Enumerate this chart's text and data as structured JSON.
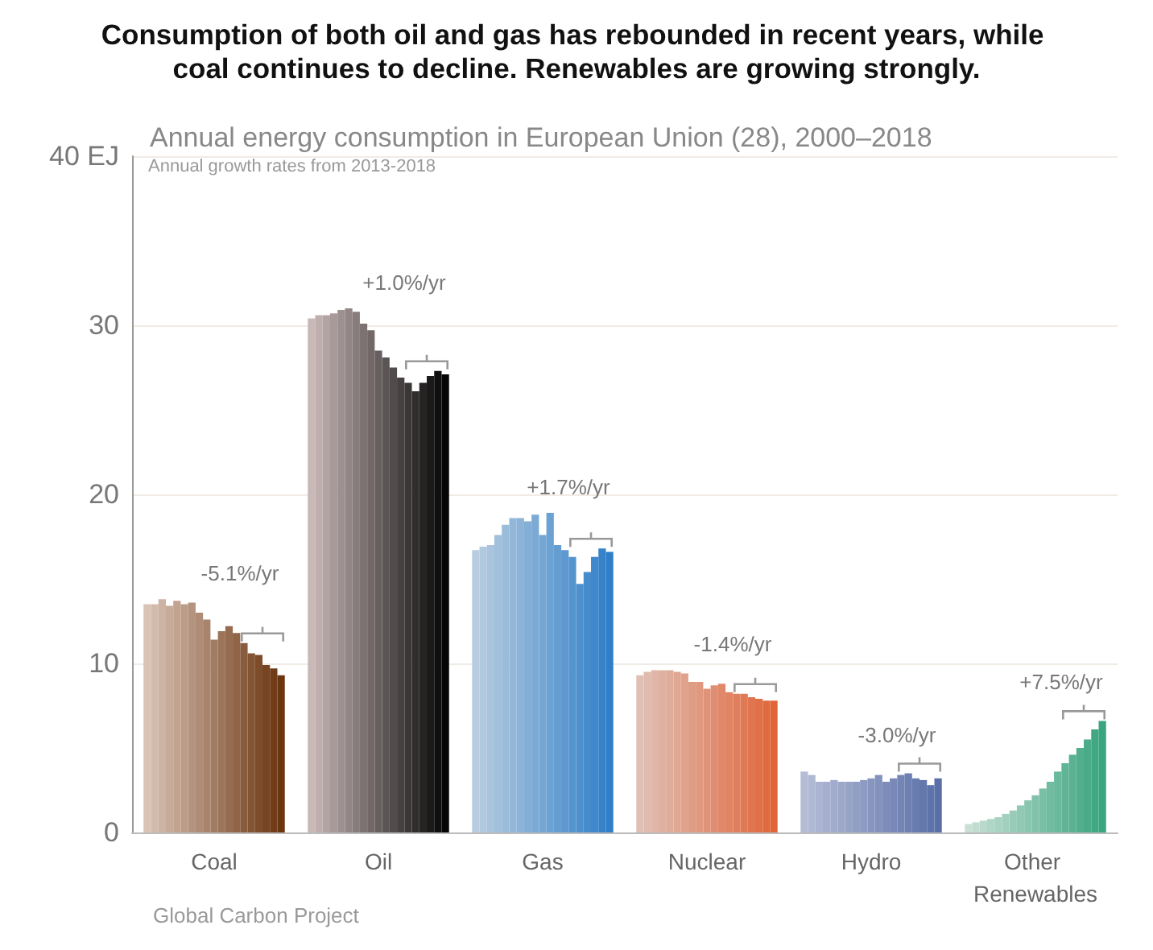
{
  "chart_data": {
    "type": "bar",
    "title": "Consumption of both oil and gas has rebounded in recent years, while coal continues to decline. Renewables are growing strongly.",
    "subtitle": "Annual energy consumption in European Union (28), 2000–2018",
    "categories": [
      "Coal",
      "Oil",
      "Gas",
      "Nuclear",
      "Hydro",
      "Other Renewables"
    ],
    "series": [
      {
        "values": [
          13.5,
          30.4,
          16.7,
          9.3,
          3.6,
          0.5
        ],
        "colors": [
          "#d9c3b5",
          "#c9b8b8",
          "#b9cde0",
          "#e0c0b5",
          "#b5bdd6",
          "#c8e0d5"
        ]
      },
      {
        "values": [
          13.5,
          30.6,
          16.9,
          9.5,
          3.4,
          0.6
        ],
        "colors": [
          "#d3bbac",
          "#beaeae",
          "#b1c9df",
          "#e0bbae",
          "#b0b9d3",
          "#c0ddd0"
        ]
      },
      {
        "values": [
          13.8,
          30.6,
          17.0,
          9.6,
          3.0,
          0.7
        ],
        "colors": [
          "#cdb3a3",
          "#b3a4a4",
          "#aac4dd",
          "#e0b6a8",
          "#abb4d1",
          "#b8d9cb"
        ]
      },
      {
        "values": [
          13.4,
          30.7,
          17.6,
          9.6,
          3.0,
          0.8
        ],
        "colors": [
          "#c7ab99",
          "#a89a9a",
          "#a2c0dc",
          "#e0b1a1",
          "#a6b0ce",
          "#b0d6c7"
        ]
      },
      {
        "values": [
          13.7,
          30.9,
          18.2,
          9.6,
          3.1,
          0.9
        ],
        "colors": [
          "#c1a390",
          "#9d9090",
          "#9abcdb",
          "#e0ac9a",
          "#a1accc",
          "#a8d3c2"
        ]
      },
      {
        "values": [
          13.5,
          31.0,
          18.6,
          9.5,
          3.0,
          1.1
        ],
        "colors": [
          "#ba9c87",
          "#938686",
          "#93b7d9",
          "#e0a793",
          "#9ca7c9",
          "#a1d0bd"
        ]
      },
      {
        "values": [
          13.6,
          30.8,
          18.6,
          9.4,
          3.0,
          1.3
        ],
        "colors": [
          "#b4947e",
          "#887c7c",
          "#8bb3d8",
          "#e0a28c",
          "#97a3c7",
          "#99ccb8"
        ]
      },
      {
        "values": [
          13.0,
          30.1,
          18.4,
          8.9,
          3.0,
          1.6
        ],
        "colors": [
          "#ae8c75",
          "#7d7272",
          "#83afd7",
          "#e09d86",
          "#929fc4",
          "#91c9b4"
        ]
      },
      {
        "values": [
          12.6,
          29.7,
          18.8,
          8.9,
          3.1,
          1.9
        ],
        "colors": [
          "#a8846c",
          "#726868",
          "#7caad5",
          "#e0987f",
          "#8d9ac2",
          "#89c6af"
        ]
      },
      {
        "values": [
          11.4,
          28.5,
          17.6,
          8.5,
          3.2,
          2.2
        ],
        "colors": [
          "#a27c62",
          "#675f5f",
          "#74a6d4",
          "#e09378",
          "#8796bf",
          "#81c2aa"
        ]
      },
      {
        "values": [
          11.9,
          28.1,
          18.9,
          8.7,
          3.4,
          2.6
        ],
        "colors": [
          "#9c7459",
          "#5c5555",
          "#6ca2d3",
          "#e08e71",
          "#8292bc",
          "#79bfa5"
        ]
      },
      {
        "values": [
          12.2,
          27.5,
          17.0,
          8.8,
          3.0,
          3.0
        ],
        "colors": [
          "#966c50",
          "#514b4b",
          "#659dd1",
          "#e0896a",
          "#7d8dba",
          "#71bca0"
        ]
      },
      {
        "values": [
          11.8,
          26.9,
          16.7,
          8.3,
          3.2,
          3.6
        ],
        "colors": [
          "#906447",
          "#464141",
          "#5d99d0",
          "#e08463",
          "#7889b7",
          "#69b99c"
        ]
      },
      {
        "values": [
          11.2,
          26.6,
          16.3,
          8.2,
          3.4,
          4.1
        ],
        "colors": [
          "#8a5c3e",
          "#3b3737",
          "#5595cf",
          "#e07f5d",
          "#7385b5",
          "#61b597"
        ]
      },
      {
        "values": [
          10.6,
          26.1,
          14.7,
          8.2,
          3.5,
          4.6
        ],
        "colors": [
          "#835535",
          "#312d2d",
          "#4e90cd",
          "#e07a56",
          "#6e80b2",
          "#5ab292"
        ]
      },
      {
        "values": [
          10.5,
          26.6,
          15.4,
          8.0,
          3.2,
          5.0
        ],
        "colors": [
          "#7d4d2b",
          "#262323",
          "#468ccc",
          "#e0754f",
          "#697cb0",
          "#52af8d"
        ]
      },
      {
        "values": [
          9.9,
          27.0,
          16.3,
          7.9,
          3.1,
          5.5
        ],
        "colors": [
          "#774522",
          "#1b1919",
          "#3e88cb",
          "#e07048",
          "#6478ad",
          "#4aab88"
        ]
      },
      {
        "values": [
          9.7,
          27.3,
          16.8,
          7.8,
          2.8,
          6.1
        ],
        "colors": [
          "#713d19",
          "#100f0f",
          "#3783c9",
          "#e06b41",
          "#5f73ab",
          "#42a884"
        ]
      },
      {
        "values": [
          9.3,
          27.1,
          16.6,
          7.8,
          3.2,
          6.6
        ],
        "colors": [
          "#6b3510",
          "#050505",
          "#2f7fc8",
          "#e0663a",
          "#5a6fa8",
          "#3aa57f"
        ]
      }
    ],
    "ylim": [
      0,
      40
    ],
    "yticks": [
      0,
      10,
      20,
      30,
      {
        "value": 40,
        "label": "40 EJ"
      }
    ],
    "grid": "y",
    "annotations": [
      "Annual growth rates from 2013-2018",
      "Global Carbon Project",
      "-5.1%/yr",
      "+1.0%/yr",
      "+1.7%/yr",
      "-1.4%/yr",
      "-3.0%/yr",
      "+7.5%/yr"
    ]
  }
}
